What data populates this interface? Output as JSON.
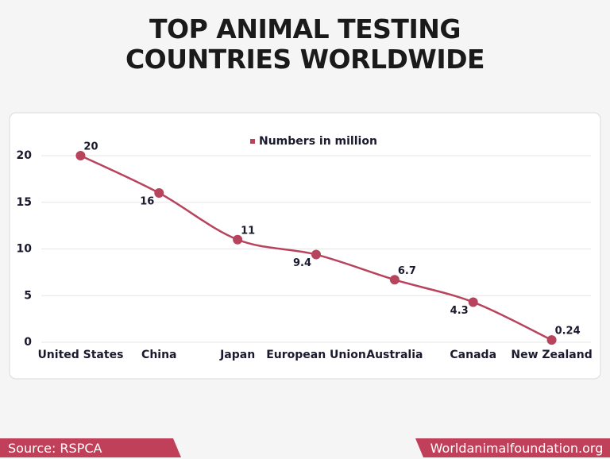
{
  "chart_data": {
    "type": "line",
    "title": "TOP ANIMAL TESTING COUNTRIES WORLDWIDE",
    "categories": [
      "United States",
      "China",
      "Japan",
      "European Union",
      "Australia",
      "Canada",
      "New Zealand"
    ],
    "series": [
      {
        "name": "Numbers in million",
        "color": "#b8435d",
        "values": [
          20,
          16,
          11,
          9.4,
          6.7,
          4.3,
          0.24
        ]
      }
    ],
    "ylim": [
      0,
      20
    ],
    "yticks": [
      0,
      5,
      10,
      15,
      20
    ],
    "grid": true,
    "legend": "top",
    "smooth": true
  },
  "footer": {
    "source": "Source: RSPCA",
    "website": "Worldanimalfoundation.org"
  }
}
